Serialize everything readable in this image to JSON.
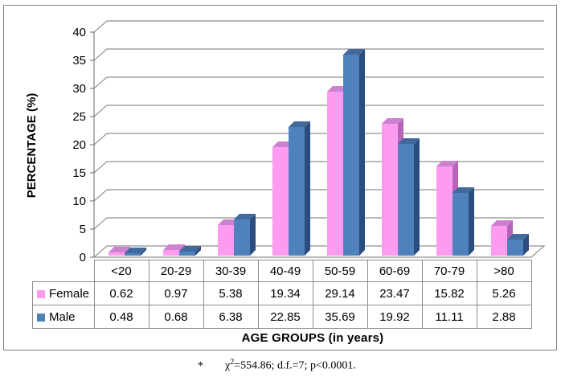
{
  "chart_data": {
    "type": "bar",
    "variant": "3d-clustered-column",
    "title": "",
    "categories": [
      "<20",
      "20-29",
      "30-39",
      "40-49",
      "50-59",
      "60-69",
      "70-79",
      ">80"
    ],
    "series": [
      {
        "name": "Female",
        "color": "#fd9bf1",
        "color_top": "#cc82ce",
        "color_side": "#b564ba",
        "values": [
          0.62,
          0.97,
          5.38,
          19.34,
          29.14,
          23.47,
          15.82,
          5.26
        ]
      },
      {
        "name": "Male",
        "color": "#4f81bd",
        "color_top": "#41699c",
        "color_side": "#2a4d7e",
        "values": [
          0.48,
          0.68,
          6.38,
          22.85,
          35.69,
          19.92,
          11.11,
          2.88
        ]
      }
    ],
    "xlabel": "AGE GROUPS (in years)",
    "ylabel": "PERCENTAGE (%)",
    "ylim": [
      0,
      40
    ],
    "ytick_step": 5,
    "yticks": [
      0,
      5,
      10,
      15,
      20,
      25,
      30,
      35,
      40
    ],
    "grid": true,
    "legend_position": "table-rows-left",
    "gridline_color": "#8f8f8f",
    "axis_color": "#808080"
  },
  "footnote": {
    "marker": "*",
    "chi": "χ",
    "sup": "2",
    "rest": "=554.86; d.f.=7; p<0.0001."
  }
}
